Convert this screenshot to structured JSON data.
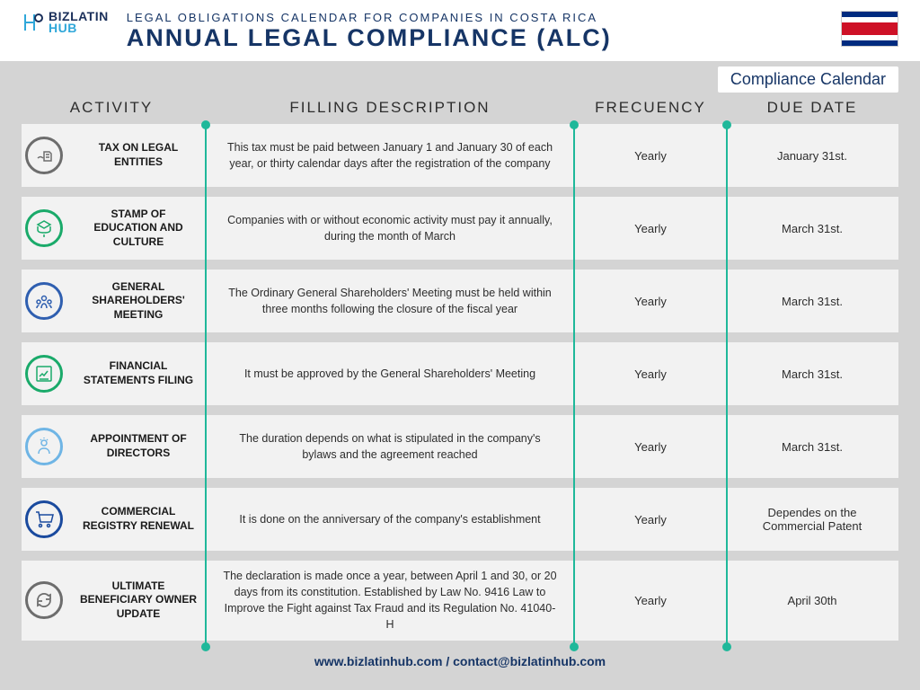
{
  "header": {
    "logo": {
      "biz": "BIZ",
      "latin": "LATIN",
      "hub": "HUB"
    },
    "subtitle": "LEGAL OBLIGATIONS CALENDAR FOR COMPANIES IN COSTA RICA",
    "title": "ANNUAL LEGAL COMPLIANCE (ALC)",
    "badge": "Compliance Calendar",
    "flag_colors": {
      "blue": "#002b7f",
      "white": "#ffffff",
      "red": "#ce1126"
    }
  },
  "columns": {
    "activity": "ACTIVITY",
    "description": "FILLING DESCRIPTION",
    "frequency": "FRECUENCY",
    "due": "DUE DATE"
  },
  "colors": {
    "row_bg": "#f2f2f2",
    "divider": "#1fb89a",
    "title": "#163566",
    "text": "#2d2d2d"
  },
  "icon_colors": {
    "gray": "#6d6d6d",
    "green": "#1aaa6a",
    "blue": "#2f5fb0",
    "lightblue": "#6fb5e5",
    "navy": "#1a4a9e"
  },
  "rows": [
    {
      "icon": "tax-icon",
      "icon_color": "gray",
      "activity": "TAX ON LEGAL ENTITIES",
      "description": "This tax must be paid between January 1 and January 30 of each year, or thirty calendar days after the registration of the company",
      "frequency": "Yearly",
      "due": "January 31st."
    },
    {
      "icon": "education-icon",
      "icon_color": "green",
      "activity": "STAMP OF EDUCATION AND CULTURE",
      "description": "Companies with or without economic activity must pay it annually, during the month of March",
      "frequency": "Yearly",
      "due": "March 31st."
    },
    {
      "icon": "meeting-icon",
      "icon_color": "blue",
      "activity": "GENERAL SHAREHOLDERS' MEETING",
      "description": "The Ordinary General Shareholders' Meeting must be held within three months following the closure of the fiscal year",
      "frequency": "Yearly",
      "due": "March 31st."
    },
    {
      "icon": "financial-icon",
      "icon_color": "green",
      "activity": "FINANCIAL STATEMENTS FILING",
      "description": "It must be approved by the General Shareholders' Meeting",
      "frequency": "Yearly",
      "due": "March 31st."
    },
    {
      "icon": "directors-icon",
      "icon_color": "lightblue",
      "activity": "APPOINTMENT OF DIRECTORS",
      "description": "The duration depends on what is stipulated in the company's bylaws and the agreement reached",
      "frequency": "Yearly",
      "due": "March 31st."
    },
    {
      "icon": "registry-icon",
      "icon_color": "navy",
      "activity": "COMMERCIAL REGISTRY RENEWAL",
      "description": "It is done on the anniversary of the company's establishment",
      "frequency": "Yearly",
      "due": "Dependes on the Commercial Patent"
    },
    {
      "icon": "refresh-icon",
      "icon_color": "gray",
      "activity": "ULTIMATE BENEFICIARY OWNER UPDATE",
      "description": "The declaration is made once a year, between April 1 and 30, or 20 days from its constitution. Established by Law No. 9416 Law to Improve the Fight against Tax Fraud and its Regulation No. 41040-H",
      "frequency": "Yearly",
      "due": "April 30th"
    }
  ],
  "footer": "www.bizlatinhub.com / contact@bizlatinhub.com"
}
